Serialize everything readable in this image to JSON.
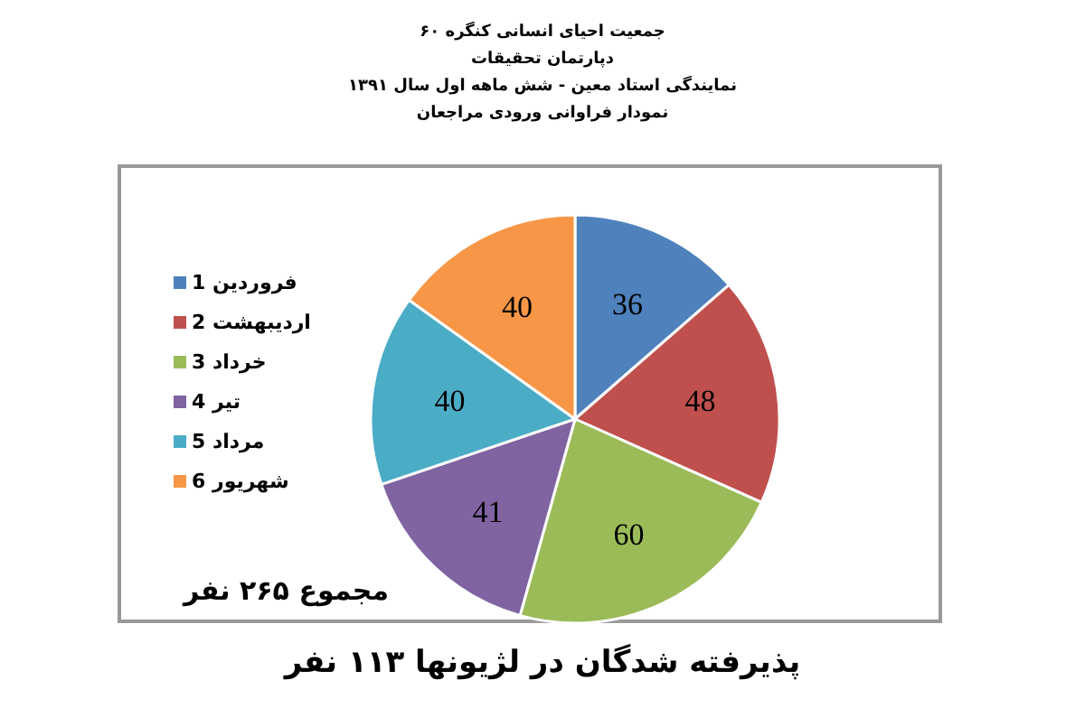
{
  "chart_data": {
    "type": "pie",
    "title": "جمعیت احیای انسانی کنگره ۶۰",
    "subtitle": [
      "دپارتمان تحقیقات",
      "نمایندگی استاد معین - شش ماهه اول سال ۱۳۹۱",
      "نمودار فراوانی ورودی مراجعان"
    ],
    "categories": [
      "1 فروردین",
      "2 اردیبهشت",
      "3 خرداد",
      "4 تیر",
      "5 مرداد",
      "6 شهریور"
    ],
    "values": [
      36,
      48,
      60,
      41,
      40,
      40
    ],
    "colors": [
      "#4f81bd",
      "#c0504d",
      "#9bbb59",
      "#8064a2",
      "#4bacc6",
      "#f79646"
    ],
    "data_labels": true,
    "legend": "left",
    "annotations": [
      "مجموع ۲۶۵ نفر",
      "پذیرفته شدگان در لژیونها ۱۱۳ نفر"
    ]
  }
}
